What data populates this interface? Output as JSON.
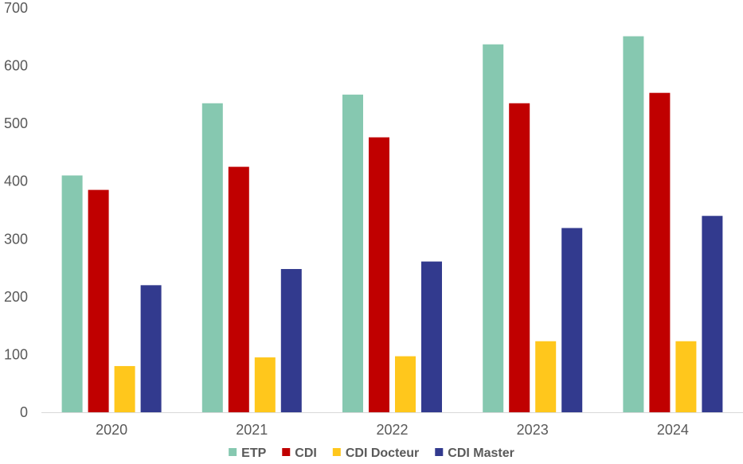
{
  "chart_data": {
    "type": "bar",
    "categories": [
      "2020",
      "2021",
      "2022",
      "2023",
      "2024"
    ],
    "series": [
      {
        "name": "ETP",
        "color": "#86C8B0",
        "values": [
          410,
          535,
          550,
          637,
          651
        ]
      },
      {
        "name": "CDI",
        "color": "#C00000",
        "values": [
          385,
          425,
          476,
          535,
          553
        ]
      },
      {
        "name": "CDI Docteur",
        "color": "#FFC71C",
        "values": [
          80,
          95,
          97,
          123,
          123
        ]
      },
      {
        "name": "CDI Master",
        "color": "#323A8E",
        "values": [
          220,
          248,
          261,
          319,
          340
        ]
      }
    ],
    "ylim": [
      0,
      700
    ],
    "yticks": [
      0,
      100,
      200,
      300,
      400,
      500,
      600,
      700
    ],
    "grid": false,
    "legend_position": "bottom"
  }
}
